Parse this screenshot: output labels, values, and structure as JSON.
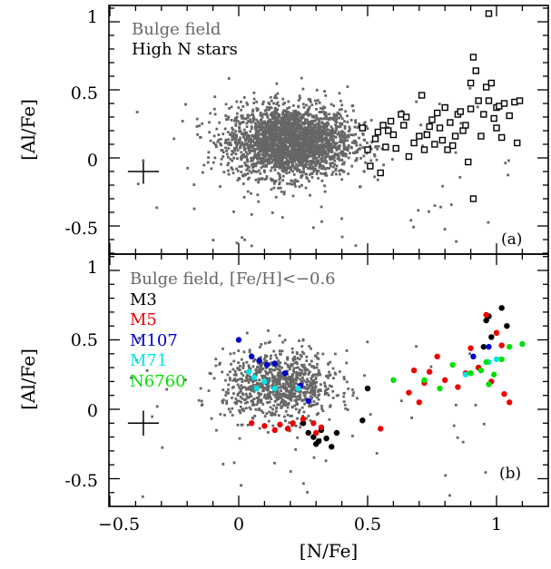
{
  "chart_data": [
    {
      "type": "scatter",
      "panel_label": "(a)",
      "xlabel": "[N/Fe]",
      "ylabel": "[Al/Fe]",
      "xlim": [
        -0.5,
        1.2
      ],
      "ylim": [
        -0.75,
        1.1
      ],
      "yticks": [
        "-0.5",
        "0",
        "0.5",
        "1"
      ],
      "legend_position": "top-left",
      "legend": [
        {
          "text": "Bulge field",
          "color": "#666666"
        },
        {
          "text": "High N stars",
          "color": "#000000"
        }
      ],
      "error_bar": {
        "x": -0.37,
        "y": -0.1,
        "half_width_x": 0.06,
        "half_height_y": 0.09
      },
      "series": [
        {
          "name": "Bulge field",
          "color": "#666666",
          "marker": "small-square",
          "cloud": {
            "center": [
              0.2,
              0.12
            ],
            "spread": [
              0.12,
              0.13
            ],
            "n": 2600,
            "outliers": 70
          }
        },
        {
          "name": "High N stars",
          "color": "#000000",
          "marker": "open-square",
          "points": [
            [
              0.48,
              0.22
            ],
            [
              0.5,
              0.06
            ],
            [
              0.51,
              -0.06
            ],
            [
              0.53,
              0.14
            ],
            [
              0.54,
              0.19
            ],
            [
              0.55,
              -0.11
            ],
            [
              0.56,
              0.24
            ],
            [
              0.57,
              0.08
            ],
            [
              0.58,
              0.2
            ],
            [
              0.59,
              0.27
            ],
            [
              0.6,
              0.17
            ],
            [
              0.61,
              0.07
            ],
            [
              0.63,
              0.32
            ],
            [
              0.64,
              0.24
            ],
            [
              0.65,
              0.3
            ],
            [
              0.66,
              0.01
            ],
            [
              0.68,
              0.11
            ],
            [
              0.7,
              0.16
            ],
            [
              0.71,
              0.46
            ],
            [
              0.72,
              0.06
            ],
            [
              0.73,
              0.17
            ],
            [
              0.74,
              0.23
            ],
            [
              0.75,
              0.28
            ],
            [
              0.76,
              0.1
            ],
            [
              0.77,
              0.33
            ],
            [
              0.78,
              0.22
            ],
            [
              0.79,
              0.13
            ],
            [
              0.8,
              0.37
            ],
            [
              0.81,
              0.06
            ],
            [
              0.82,
              0.26
            ],
            [
              0.83,
              0.09
            ],
            [
              0.84,
              0.16
            ],
            [
              0.85,
              0.32
            ],
            [
              0.86,
              0.34
            ],
            [
              0.87,
              0.2
            ],
            [
              0.88,
              0.24
            ],
            [
              0.89,
              -0.03
            ],
            [
              0.9,
              0.36
            ],
            [
              0.9,
              0.55
            ],
            [
              0.91,
              0.74
            ],
            [
              0.91,
              -0.3
            ],
            [
              0.92,
              0.64
            ],
            [
              0.93,
              0.42
            ],
            [
              0.94,
              0.16
            ],
            [
              0.95,
              0.32
            ],
            [
              0.96,
              0.52
            ],
            [
              0.97,
              0.42
            ],
            [
              0.97,
              1.06
            ],
            [
              0.98,
              0.55
            ],
            [
              0.99,
              0.29
            ],
            [
              1.0,
              0.37
            ],
            [
              1.0,
              0.22
            ],
            [
              1.01,
              0.38
            ],
            [
              1.02,
              0.15
            ],
            [
              1.03,
              0.4
            ],
            [
              1.05,
              0.31
            ],
            [
              1.07,
              0.41
            ],
            [
              1.08,
              0.11
            ],
            [
              1.09,
              0.42
            ]
          ]
        }
      ]
    },
    {
      "type": "scatter",
      "panel_label": "(b)",
      "xlabel": "[N/Fe]",
      "ylabel": "[Al/Fe]",
      "xlim": [
        -0.5,
        1.2
      ],
      "ylim": [
        -0.75,
        1.1
      ],
      "xticks": [
        "−0.5",
        "0",
        "0.5",
        "1"
      ],
      "yticks": [
        "-0.5",
        "0",
        "0.5",
        "1"
      ],
      "legend_position": "top-left",
      "legend": [
        {
          "text": "Bulge field, [Fe/H]<−0.6",
          "color": "#666666"
        },
        {
          "text": "M3",
          "color": "#000000"
        },
        {
          "text": "M5",
          "color": "#ee0000"
        },
        {
          "text": "M107",
          "color": "#0000cc"
        },
        {
          "text": "M71",
          "color": "#00e5e5"
        },
        {
          "text": "N6760",
          "color": "#00e000"
        }
      ],
      "error_bar": {
        "x": -0.37,
        "y": -0.1,
        "half_width_x": 0.06,
        "half_height_y": 0.09
      },
      "series": [
        {
          "name": "Bulge field, [Fe/H]<−0.6",
          "color": "#666666",
          "marker": "small-square",
          "cloud": {
            "center": [
              0.16,
              0.17
            ],
            "spread": [
              0.11,
              0.12
            ],
            "n": 900,
            "outliers": 50
          }
        },
        {
          "name": "M3",
          "color": "#000000",
          "marker": "filled-circle",
          "points": [
            [
              0.25,
              -0.1
            ],
            [
              0.27,
              -0.17
            ],
            [
              0.29,
              -0.2
            ],
            [
              0.3,
              -0.25
            ],
            [
              0.31,
              -0.23
            ],
            [
              0.32,
              -0.15
            ],
            [
              0.34,
              -0.21
            ],
            [
              0.36,
              -0.27
            ],
            [
              0.38,
              -0.17
            ],
            [
              0.48,
              -0.08
            ],
            [
              0.5,
              0.15
            ],
            [
              0.93,
              0.3
            ],
            [
              0.95,
              0.45
            ],
            [
              0.96,
              0.64
            ],
            [
              0.97,
              0.67
            ],
            [
              0.98,
              0.52
            ],
            [
              1.0,
              0.55
            ],
            [
              1.02,
              0.73
            ],
            [
              1.04,
              0.6
            ]
          ]
        },
        {
          "name": "M5",
          "color": "#ee0000",
          "marker": "filled-circle",
          "points": [
            [
              0.05,
              -0.1
            ],
            [
              0.1,
              -0.12
            ],
            [
              0.14,
              -0.15
            ],
            [
              0.16,
              -0.11
            ],
            [
              0.19,
              -0.14
            ],
            [
              0.21,
              -0.1
            ],
            [
              0.25,
              -0.07
            ],
            [
              0.29,
              -0.1
            ],
            [
              0.3,
              -0.17
            ],
            [
              0.32,
              -0.13
            ],
            [
              0.55,
              -0.14
            ],
            [
              0.66,
              0.12
            ],
            [
              0.68,
              0.28
            ],
            [
              0.7,
              0.05
            ],
            [
              0.72,
              0.19
            ],
            [
              0.74,
              0.27
            ],
            [
              0.77,
              0.38
            ],
            [
              0.8,
              0.21
            ],
            [
              0.85,
              0.16
            ],
            [
              0.88,
              0.26
            ],
            [
              0.9,
              0.44
            ],
            [
              0.93,
              0.3
            ],
            [
              0.96,
              0.68
            ],
            [
              0.98,
              0.2
            ],
            [
              1.0,
              0.55
            ],
            [
              1.02,
              0.46
            ],
            [
              1.03,
              0.11
            ],
            [
              1.05,
              0.05
            ]
          ]
        },
        {
          "name": "M107",
          "color": "#0000cc",
          "marker": "filled-circle",
          "points": [
            [
              0.0,
              0.5
            ],
            [
              0.05,
              0.38
            ],
            [
              0.08,
              0.35
            ],
            [
              0.11,
              0.32
            ],
            [
              0.14,
              0.33
            ],
            [
              0.18,
              0.26
            ],
            [
              0.24,
              0.17
            ],
            [
              0.27,
              0.06
            ],
            [
              0.91,
              0.38
            ],
            [
              0.97,
              0.45
            ]
          ]
        },
        {
          "name": "M71",
          "color": "#00e5e5",
          "marker": "filled-circle",
          "points": [
            [
              0.04,
              0.27
            ],
            [
              0.06,
              0.23
            ],
            [
              0.07,
              0.15
            ],
            [
              0.1,
              0.2
            ],
            [
              0.14,
              0.15
            ],
            [
              0.23,
              0.15
            ],
            [
              0.88,
              0.25
            ],
            [
              0.97,
              0.34
            ],
            [
              1.0,
              0.36
            ]
          ]
        },
        {
          "name": "N6760",
          "color": "#00e000",
          "marker": "filled-circle",
          "points": [
            [
              0.6,
              0.21
            ],
            [
              0.72,
              0.21
            ],
            [
              0.78,
              0.15
            ],
            [
              0.83,
              0.32
            ],
            [
              0.9,
              0.26
            ],
            [
              0.94,
              0.28
            ],
            [
              0.96,
              0.34
            ],
            [
              0.97,
              0.18
            ],
            [
              0.99,
              0.25
            ],
            [
              1.02,
              0.36
            ],
            [
              1.05,
              0.45
            ],
            [
              1.1,
              0.47
            ]
          ]
        }
      ]
    }
  ]
}
